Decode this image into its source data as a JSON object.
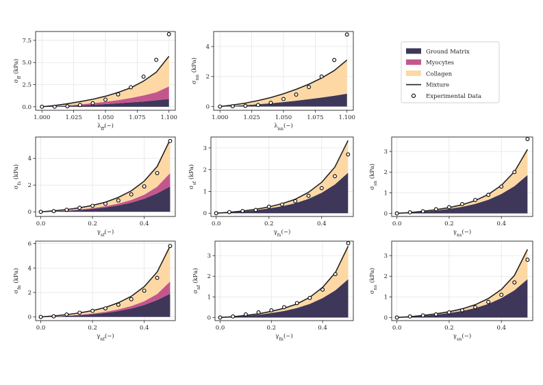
{
  "colors": {
    "ground": "#3e3759",
    "myocytes": "#c4568e",
    "collagen": "#fdd8a4",
    "mixture": "#222222",
    "exp": "#000000"
  },
  "legend": {
    "placement": "top-right",
    "items": [
      {
        "label": "Ground Matrix",
        "kind": "patch",
        "color": "#3e3759"
      },
      {
        "label": "Myocytes",
        "kind": "patch",
        "color": "#c4568e"
      },
      {
        "label": "Collagen",
        "kind": "patch",
        "color": "#fdd8a4"
      },
      {
        "label": "Mixture",
        "kind": "line",
        "color": "#222222"
      },
      {
        "label": "Experimental Data",
        "kind": "marker",
        "color": "#000000"
      }
    ]
  },
  "chart_data": [
    {
      "type": "area",
      "id": "ff",
      "xlabel": "λ_ff(−)",
      "ylabel": "σ_ff (kPa)",
      "xlim": [
        0.995,
        1.105
      ],
      "ylim": [
        -0.4,
        8.5
      ],
      "xticks": [
        1.0,
        1.025,
        1.05,
        1.075,
        1.1
      ],
      "xtick_labels": [
        "1.000",
        "1.025",
        "1.050",
        "1.075",
        "1.100"
      ],
      "yticks": [
        0,
        2.5,
        5.0,
        7.5
      ],
      "ytick_labels": [
        "0.0",
        "2.5",
        "5.0",
        "7.5"
      ],
      "x": [
        1.0,
        1.01,
        1.02,
        1.03,
        1.04,
        1.05,
        1.06,
        1.07,
        1.08,
        1.09,
        1.1
      ],
      "series": [
        {
          "name": "Ground Matrix",
          "values": [
            0,
            0.04,
            0.09,
            0.15,
            0.22,
            0.3,
            0.39,
            0.49,
            0.6,
            0.73,
            0.88
          ]
        },
        {
          "name": "Myocytes",
          "values": [
            0,
            0.03,
            0.07,
            0.12,
            0.18,
            0.26,
            0.36,
            0.5,
            0.68,
            0.9,
            1.42
          ]
        },
        {
          "name": "Collagen",
          "values": [
            0,
            0.07,
            0.18,
            0.31,
            0.45,
            0.63,
            0.87,
            1.15,
            1.62,
            2.27,
            3.4
          ]
        }
      ],
      "mixture": [
        0,
        0.14,
        0.34,
        0.58,
        0.85,
        1.19,
        1.62,
        2.14,
        2.9,
        3.9,
        5.7
      ],
      "experimental": {
        "x": [
          1.0,
          1.01,
          1.02,
          1.03,
          1.04,
          1.05,
          1.06,
          1.07,
          1.08,
          1.09,
          1.1
        ],
        "y": [
          0.0,
          0.0,
          0.05,
          0.2,
          0.4,
          0.8,
          1.4,
          2.2,
          3.4,
          5.3,
          8.2
        ]
      }
    },
    {
      "type": "area",
      "id": "nn",
      "xlabel": "λ_nn(−)",
      "ylabel": "σ_nn (kPa)",
      "xlim": [
        0.995,
        1.105
      ],
      "ylim": [
        -0.25,
        5.0
      ],
      "xticks": [
        1.0,
        1.025,
        1.05,
        1.075,
        1.1
      ],
      "xtick_labels": [
        "1.000",
        "1.025",
        "1.050",
        "1.075",
        "1.100"
      ],
      "yticks": [
        0,
        2,
        4
      ],
      "ytick_labels": [
        "0",
        "2",
        "4"
      ],
      "x": [
        1.0,
        1.01,
        1.02,
        1.03,
        1.04,
        1.05,
        1.06,
        1.07,
        1.08,
        1.09,
        1.1
      ],
      "series": [
        {
          "name": "Ground Matrix",
          "values": [
            0,
            0.04,
            0.09,
            0.15,
            0.22,
            0.3,
            0.39,
            0.49,
            0.6,
            0.72,
            0.86
          ]
        },
        {
          "name": "Collagen",
          "values": [
            0,
            0.06,
            0.14,
            0.25,
            0.38,
            0.55,
            0.76,
            1.0,
            1.3,
            1.68,
            2.24
          ]
        }
      ],
      "mixture": [
        0,
        0.1,
        0.23,
        0.4,
        0.6,
        0.85,
        1.15,
        1.49,
        1.9,
        2.4,
        3.1
      ],
      "experimental": {
        "x": [
          1.0,
          1.01,
          1.02,
          1.03,
          1.04,
          1.05,
          1.06,
          1.07,
          1.08,
          1.09,
          1.1
        ],
        "y": [
          0.0,
          0.02,
          0.05,
          0.1,
          0.25,
          0.5,
          0.8,
          1.3,
          2.0,
          3.1,
          4.8
        ]
      }
    },
    {
      "type": "area",
      "id": "fs",
      "xlabel": "γ_sf(−)",
      "ylabel": "σ_fs (kPa)",
      "xlim": [
        -0.02,
        0.52
      ],
      "ylim": [
        -0.35,
        5.6
      ],
      "xticks": [
        0.0,
        0.2,
        0.4
      ],
      "xtick_labels": [
        "0.0",
        "0.2",
        "0.4"
      ],
      "yticks": [
        0,
        2,
        4
      ],
      "ytick_labels": [
        "0",
        "2",
        "4"
      ],
      "x": [
        0,
        0.05,
        0.1,
        0.15,
        0.2,
        0.25,
        0.3,
        0.35,
        0.4,
        0.45,
        0.5
      ],
      "series": [
        {
          "name": "Ground Matrix",
          "values": [
            0,
            0.03,
            0.08,
            0.14,
            0.22,
            0.33,
            0.48,
            0.69,
            0.98,
            1.38,
            1.9
          ]
        },
        {
          "name": "Myocytes",
          "values": [
            0,
            0.01,
            0.02,
            0.04,
            0.06,
            0.09,
            0.14,
            0.2,
            0.3,
            0.5,
            1.0
          ]
        },
        {
          "name": "Collagen",
          "values": [
            0,
            0.03,
            0.07,
            0.12,
            0.2,
            0.3,
            0.46,
            0.68,
            1.02,
            1.52,
            2.5
          ]
        }
      ],
      "mixture": [
        0,
        0.07,
        0.17,
        0.3,
        0.48,
        0.72,
        1.08,
        1.57,
        2.3,
        3.4,
        5.4
      ],
      "experimental": {
        "x": [
          0,
          0.05,
          0.1,
          0.15,
          0.2,
          0.25,
          0.3,
          0.35,
          0.4,
          0.45,
          0.5
        ],
        "y": [
          0.0,
          0.05,
          0.15,
          0.3,
          0.45,
          0.6,
          0.85,
          1.3,
          1.9,
          2.9,
          5.3
        ]
      }
    },
    {
      "type": "area",
      "id": "sf",
      "xlabel": "γ_fs(−)",
      "ylabel": "σ_sf (kPa)",
      "xlim": [
        -0.02,
        0.52
      ],
      "ylim": [
        -0.15,
        3.5
      ],
      "xticks": [
        0.0,
        0.2,
        0.4
      ],
      "xtick_labels": [
        "0.0",
        "0.2",
        "0.4"
      ],
      "yticks": [
        0,
        1,
        2,
        3
      ],
      "ytick_labels": [
        "0",
        "1",
        "2",
        "3"
      ],
      "x": [
        0,
        0.05,
        0.1,
        0.15,
        0.2,
        0.25,
        0.3,
        0.35,
        0.4,
        0.45,
        0.5
      ],
      "series": [
        {
          "name": "Ground Matrix",
          "values": [
            0,
            0.03,
            0.08,
            0.14,
            0.22,
            0.32,
            0.46,
            0.66,
            0.94,
            1.32,
            1.86
          ]
        },
        {
          "name": "Collagen",
          "values": [
            0,
            0.01,
            0.02,
            0.04,
            0.07,
            0.12,
            0.18,
            0.3,
            0.48,
            0.8,
            1.48
          ]
        }
      ],
      "mixture": [
        0,
        0.04,
        0.1,
        0.18,
        0.29,
        0.44,
        0.64,
        0.96,
        1.42,
        2.12,
        3.34
      ],
      "experimental": {
        "x": [
          0,
          0.05,
          0.1,
          0.15,
          0.2,
          0.25,
          0.3,
          0.35,
          0.4,
          0.45,
          0.5
        ],
        "y": [
          0.0,
          0.05,
          0.1,
          0.15,
          0.3,
          0.4,
          0.55,
          0.8,
          1.15,
          1.7,
          2.7
        ]
      }
    },
    {
      "type": "area",
      "id": "sn",
      "xlabel": "γ_ns(−)",
      "ylabel": "σ_sn (kPa)",
      "xlim": [
        -0.02,
        0.52
      ],
      "ylim": [
        -0.15,
        3.7
      ],
      "xticks": [
        0.0,
        0.2,
        0.4
      ],
      "xtick_labels": [
        "0.0",
        "0.2",
        "0.4"
      ],
      "yticks": [
        0,
        1,
        2,
        3
      ],
      "ytick_labels": [
        "0",
        "1",
        "2",
        "3"
      ],
      "x": [
        0,
        0.05,
        0.1,
        0.15,
        0.2,
        0.25,
        0.3,
        0.35,
        0.4,
        0.45,
        0.5
      ],
      "series": [
        {
          "name": "Ground Matrix",
          "values": [
            0,
            0.03,
            0.08,
            0.14,
            0.22,
            0.32,
            0.46,
            0.66,
            0.94,
            1.32,
            1.86
          ]
        },
        {
          "name": "Collagen",
          "values": [
            0,
            0.01,
            0.02,
            0.04,
            0.06,
            0.1,
            0.16,
            0.26,
            0.42,
            0.7,
            1.24
          ]
        }
      ],
      "mixture": [
        0,
        0.04,
        0.1,
        0.18,
        0.28,
        0.42,
        0.62,
        0.92,
        1.36,
        2.02,
        3.1
      ],
      "experimental": {
        "x": [
          0,
          0.05,
          0.1,
          0.15,
          0.2,
          0.25,
          0.3,
          0.35,
          0.4,
          0.45,
          0.5
        ],
        "y": [
          0.0,
          0.05,
          0.1,
          0.2,
          0.3,
          0.45,
          0.65,
          0.9,
          1.3,
          2.0,
          3.6
        ]
      }
    },
    {
      "type": "area",
      "id": "fn",
      "xlabel": "γ_nf(−)",
      "ylabel": "σ_fn (kPa)",
      "xlim": [
        -0.02,
        0.52
      ],
      "ylim": [
        -0.3,
        6.2
      ],
      "xticks": [
        0.0,
        0.2,
        0.4
      ],
      "xtick_labels": [
        "0.0",
        "0.2",
        "0.4"
      ],
      "yticks": [
        0,
        2,
        4,
        6
      ],
      "ytick_labels": [
        "0",
        "2",
        "4",
        "6"
      ],
      "x": [
        0,
        0.05,
        0.1,
        0.15,
        0.2,
        0.25,
        0.3,
        0.35,
        0.4,
        0.45,
        0.5
      ],
      "series": [
        {
          "name": "Ground Matrix",
          "values": [
            0,
            0.03,
            0.08,
            0.14,
            0.22,
            0.33,
            0.48,
            0.69,
            0.98,
            1.38,
            1.9
          ]
        },
        {
          "name": "Myocytes",
          "values": [
            0,
            0.01,
            0.02,
            0.04,
            0.06,
            0.09,
            0.14,
            0.2,
            0.3,
            0.5,
            1.0
          ]
        },
        {
          "name": "Collagen",
          "values": [
            0,
            0.04,
            0.09,
            0.15,
            0.24,
            0.36,
            0.54,
            0.8,
            1.2,
            1.8,
            2.9
          ]
        }
      ],
      "mixture": [
        0,
        0.08,
        0.19,
        0.33,
        0.52,
        0.78,
        1.16,
        1.69,
        2.48,
        3.68,
        5.8
      ],
      "experimental": {
        "x": [
          0,
          0.05,
          0.1,
          0.15,
          0.2,
          0.25,
          0.3,
          0.35,
          0.4,
          0.45,
          0.5
        ],
        "y": [
          0.0,
          0.05,
          0.2,
          0.35,
          0.5,
          0.7,
          1.0,
          1.45,
          2.15,
          3.2,
          5.8
        ]
      }
    },
    {
      "type": "area",
      "id": "nf",
      "xlabel": "γ_fn(−)",
      "ylabel": "σ_nf (kPa)",
      "xlim": [
        -0.02,
        0.52
      ],
      "ylim": [
        -0.15,
        3.7
      ],
      "xticks": [
        0.0,
        0.2,
        0.4
      ],
      "xtick_labels": [
        "0.0",
        "0.2",
        "0.4"
      ],
      "yticks": [
        0,
        1,
        2,
        3
      ],
      "ytick_labels": [
        "0",
        "1",
        "2",
        "3"
      ],
      "x": [
        0,
        0.05,
        0.1,
        0.15,
        0.2,
        0.25,
        0.3,
        0.35,
        0.4,
        0.45,
        0.5
      ],
      "series": [
        {
          "name": "Ground Matrix",
          "values": [
            0,
            0.03,
            0.08,
            0.14,
            0.22,
            0.32,
            0.46,
            0.66,
            0.94,
            1.32,
            1.86
          ]
        },
        {
          "name": "Collagen",
          "values": [
            0,
            0.01,
            0.02,
            0.04,
            0.08,
            0.13,
            0.2,
            0.32,
            0.52,
            0.86,
            1.6
          ]
        }
      ],
      "mixture": [
        0,
        0.04,
        0.1,
        0.18,
        0.3,
        0.45,
        0.66,
        0.98,
        1.46,
        2.18,
        3.46
      ],
      "experimental": {
        "x": [
          0,
          0.05,
          0.1,
          0.15,
          0.2,
          0.25,
          0.3,
          0.35,
          0.4,
          0.45,
          0.5
        ],
        "y": [
          0.0,
          0.05,
          0.15,
          0.25,
          0.35,
          0.5,
          0.7,
          0.95,
          1.35,
          2.1,
          3.6
        ]
      }
    },
    {
      "type": "area",
      "id": "ns",
      "xlabel": "γ_sn(−)",
      "ylabel": "σ_ns (kPa)",
      "xlim": [
        -0.02,
        0.52
      ],
      "ylim": [
        -0.15,
        3.7
      ],
      "xticks": [
        0.0,
        0.2,
        0.4
      ],
      "xtick_labels": [
        "0.0",
        "0.2",
        "0.4"
      ],
      "yticks": [
        0,
        1,
        2,
        3
      ],
      "ytick_labels": [
        "0",
        "1",
        "2",
        "3"
      ],
      "x": [
        0,
        0.05,
        0.1,
        0.15,
        0.2,
        0.25,
        0.3,
        0.35,
        0.4,
        0.45,
        0.5
      ],
      "series": [
        {
          "name": "Ground Matrix",
          "values": [
            0,
            0.03,
            0.08,
            0.14,
            0.22,
            0.32,
            0.46,
            0.66,
            0.94,
            1.32,
            1.86
          ]
        },
        {
          "name": "Collagen",
          "values": [
            0,
            0.01,
            0.02,
            0.04,
            0.06,
            0.1,
            0.16,
            0.26,
            0.42,
            0.72,
            1.44
          ]
        }
      ],
      "mixture": [
        0,
        0.04,
        0.1,
        0.18,
        0.28,
        0.42,
        0.62,
        0.92,
        1.36,
        2.04,
        3.3
      ],
      "experimental": {
        "x": [
          0,
          0.05,
          0.1,
          0.15,
          0.2,
          0.25,
          0.3,
          0.35,
          0.4,
          0.45,
          0.5
        ],
        "y": [
          0.0,
          0.05,
          0.1,
          0.15,
          0.25,
          0.35,
          0.5,
          0.75,
          1.1,
          1.7,
          2.8
        ]
      }
    }
  ]
}
